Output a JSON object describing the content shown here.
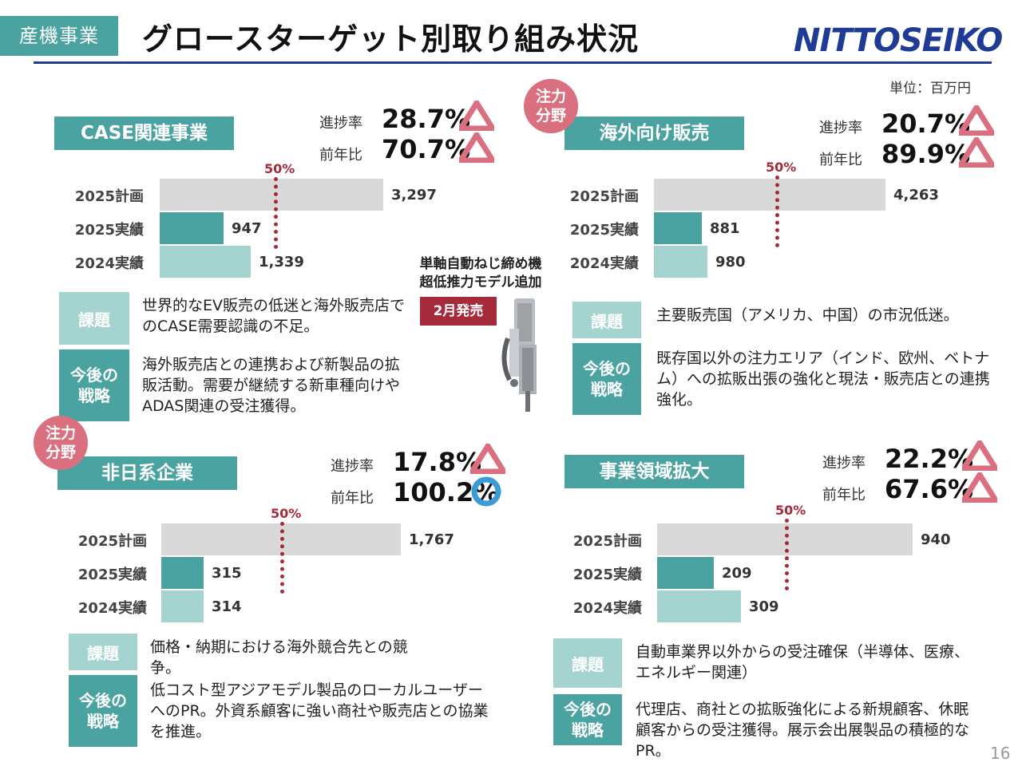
{
  "header": {
    "segment": "産機事業",
    "title": "グロースターゲット別取り組み状況",
    "logo": "NITTOSEIKO",
    "unit": "単位：百万円",
    "page": "16"
  },
  "colors": {
    "accent": "#4aa3a0",
    "accent_light": "#a5d4d0",
    "plan_bar": "#d9d9d9",
    "marker": "#a52a3a",
    "triangle": "#d96f7f",
    "circle": "#3b9bd6",
    "brand": "#1f3b94"
  },
  "common": {
    "progress_label": "進捗率",
    "yoy_label": "前年比",
    "fifty_label": "50%",
    "issue_label": "課題",
    "strategy_label": "今後の\n戦略",
    "focus_label": "注力\n分野",
    "row_labels": [
      "2025計画",
      "2025実績",
      "2024実績"
    ]
  },
  "panels": [
    {
      "title": "CASE関連事業",
      "focus": false,
      "progress": "28.7%",
      "yoy": "70.7%",
      "progress_mark": "triangle",
      "yoy_mark": "triangle",
      "values": [
        3297,
        947,
        1339
      ],
      "value_labels": [
        "3,297",
        "947",
        "1,339"
      ],
      "issue": "世界的なEV販売の低迷と海外販売店でのCASE需要認識の不足。",
      "strategy": "海外販売店との連携および新製品の拡販活動。需要が継続する新車種向けやADAS関連の受注獲得。"
    },
    {
      "title": "海外向け販売",
      "focus": true,
      "progress": "20.7%",
      "yoy": "89.9%",
      "progress_mark": "triangle",
      "yoy_mark": "triangle",
      "values": [
        4263,
        881,
        980
      ],
      "value_labels": [
        "4,263",
        "881",
        "980"
      ],
      "issue": "主要販売国（アメリカ、中国）の市況低迷。",
      "strategy": "既存国以外の注力エリア（インド、欧州、ベトナム）への拡販出張の強化と現法・販売店との連携強化。"
    },
    {
      "title": "非日系企業",
      "focus": true,
      "progress": "17.8%",
      "yoy": "100.2%",
      "progress_mark": "triangle",
      "yoy_mark": "circle",
      "values": [
        1767,
        315,
        314
      ],
      "value_labels": [
        "1,767",
        "315",
        "314"
      ],
      "issue": "価格・納期における海外競合先との競争。",
      "strategy": "低コスト型アジアモデル製品のローカルユーザーへのPR。外資系顧客に強い商社や販売店との協業を推進。"
    },
    {
      "title": "事業領域拡大",
      "focus": false,
      "progress": "22.2%",
      "yoy": "67.6%",
      "progress_mark": "triangle",
      "yoy_mark": "triangle",
      "values": [
        940,
        209,
        309
      ],
      "value_labels": [
        "940",
        "209",
        "309"
      ],
      "issue": "自動車業界以外からの受注確保（半導体、医療、エネルギー関連）",
      "strategy": "代理店、商社との拡販強化による新規顧客、休眠顧客からの受注獲得。展示会出展製品の積極的なPR。"
    }
  ],
  "new_product": {
    "title": "単軸自動ねじ締め機\n超低推力モデル追加",
    "release": "2月発売"
  }
}
